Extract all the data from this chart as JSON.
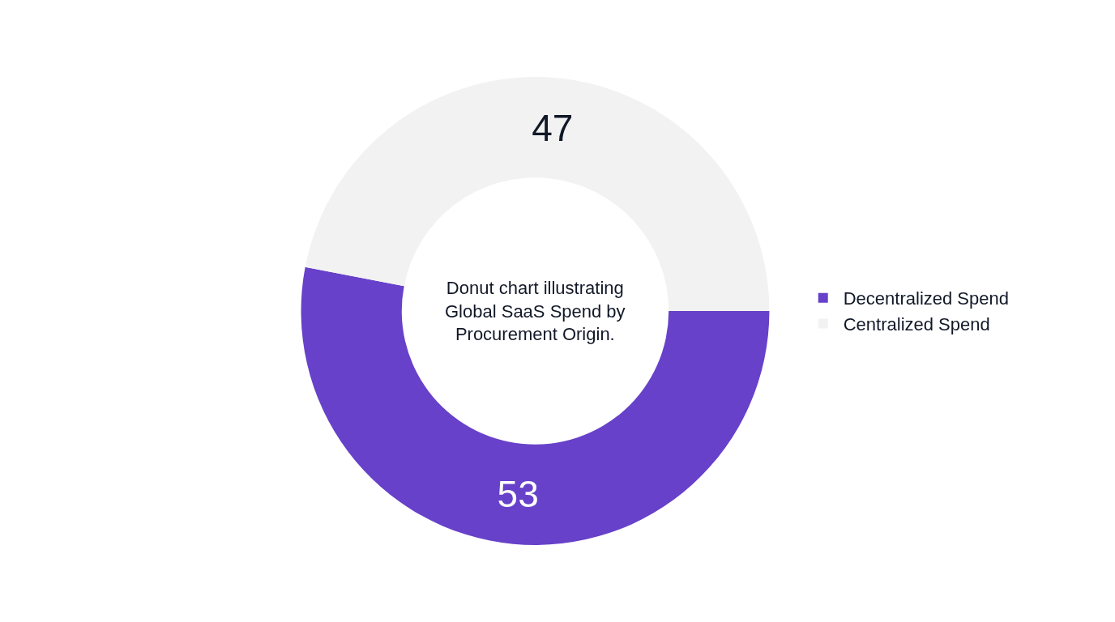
{
  "chart_data": {
    "type": "donut",
    "title": "Donut chart illustrating Global SaaS Spend by Procurement Origin.",
    "categories": [
      "Decentralized Spend",
      "Centralized Spend"
    ],
    "values": [
      53,
      47
    ],
    "colors": [
      "#6741c9",
      "#f2f2f2"
    ],
    "data_labels": true,
    "legend": "right"
  }
}
